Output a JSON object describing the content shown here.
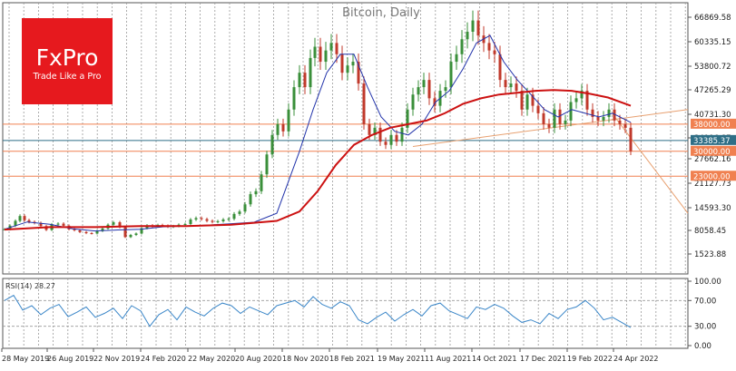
{
  "chart_data": {
    "type": "line",
    "title": "Bitcoin, Daily",
    "price_axis": {
      "scale": "nonlinear",
      "ticks": [
        "66869.58",
        "60335.15",
        "53800.72",
        "47265.29",
        "40731.30",
        "34196.87",
        "27662.16",
        "21127.73",
        "14593.30",
        "8058.45",
        "1523.88"
      ]
    },
    "price_markers": [
      {
        "label": "38000.00",
        "value": 38000,
        "color": "#f08050"
      },
      {
        "label": "33385.37",
        "value": 33385.37,
        "color": "#2e6e86"
      },
      {
        "label": "30000.00",
        "value": 30000,
        "color": "#f08050"
      },
      {
        "label": "23000.00",
        "value": 23000,
        "color": "#f08050"
      }
    ],
    "x_axis": {
      "ticks": [
        "28 May 2019",
        "26 Aug 2019",
        "22 Nov 2019",
        "24 Feb 2020",
        "22 May 2020",
        "20 Aug 2020",
        "18 Nov 2020",
        "18 Feb 2021",
        "19 May 2021",
        "11 Aug 2021",
        "14 Oct 2021",
        "17 Dec 2021",
        "19 Feb 2022",
        "24 Apr 2022"
      ]
    },
    "series": [
      {
        "role": "price",
        "type": "candlestick",
        "color_up": "#3a8f3a",
        "color_down": "#c0392b",
        "x": [
          0,
          6,
          12,
          17,
          22,
          27,
          33,
          40,
          46,
          52,
          59,
          65,
          71,
          77,
          83,
          90,
          96,
          102,
          108,
          114,
          120,
          127,
          133,
          139,
          145,
          151,
          157,
          163,
          169,
          174,
          180,
          186,
          192,
          199,
          205,
          211,
          217,
          223,
          229,
          235,
          241,
          247,
          253,
          259,
          265,
          271,
          277,
          283,
          289,
          295,
          301,
          307,
          313,
          319,
          325,
          331,
          337,
          342,
          348,
          354,
          360,
          366,
          372,
          378,
          384,
          390,
          396,
          402,
          408,
          414,
          420,
          426,
          432,
          438,
          444,
          450,
          456,
          462,
          468,
          474,
          480,
          486,
          492,
          498,
          504,
          510,
          516,
          522,
          528,
          534,
          540,
          546,
          552,
          558,
          564,
          570,
          576,
          582,
          588,
          594,
          600,
          606,
          612,
          618,
          624,
          630,
          636,
          642,
          648,
          654,
          660,
          666,
          672,
          678,
          684,
          690
        ],
        "close": [
          8400,
          9400,
          10800,
          12200,
          11000,
          10500,
          10200,
          9300,
          8200,
          9800,
          10000,
          9400,
          8400,
          8100,
          7600,
          7300,
          7200,
          7900,
          8600,
          9700,
          10400,
          9000,
          6200,
          6800,
          7200,
          8700,
          9500,
          9200,
          9600,
          9400,
          9100,
          9300,
          9700,
          9900,
          11200,
          11600,
          11300,
          10800,
          10500,
          10700,
          11200,
          11400,
          12800,
          13500,
          15500,
          18200,
          19000,
          23500,
          29000,
          35000,
          38000,
          36000,
          42000,
          48000,
          52000,
          48000,
          56000,
          59000,
          55000,
          58000,
          60000,
          57000,
          52000,
          54000,
          55000,
          49000,
          38000,
          35000,
          37000,
          33000,
          32000,
          35000,
          33000,
          37000,
          42000,
          46000,
          48000,
          50000,
          45000,
          43000,
          47000,
          48000,
          55000,
          57000,
          61000,
          63000,
          66000,
          62000,
          60000,
          58000,
          57000,
          50000,
          48000,
          49000,
          47000,
          42000,
          46000,
          43000,
          41000,
          38000,
          37000,
          42000,
          38000,
          39000,
          44000,
          45000,
          47000,
          42000,
          40000,
          39000,
          40000,
          42000,
          39000,
          38000,
          37000,
          30000
        ]
      },
      {
        "role": "ma-short",
        "color": "#2233aa",
        "x": [
          0,
          25,
          50,
          75,
          100,
          125,
          150,
          175,
          200,
          225,
          250,
          275,
          300,
          325,
          340,
          355,
          370,
          385,
          400,
          415,
          430,
          445,
          460,
          475,
          490,
          505,
          520,
          535,
          550,
          565,
          580,
          595,
          610,
          625,
          640,
          655,
          670,
          690
        ],
        "values": [
          8400,
          10500,
          9800,
          8500,
          7900,
          8200,
          8400,
          9100,
          9300,
          9600,
          10000,
          10400,
          13000,
          30000,
          42000,
          52000,
          57000,
          57000,
          48000,
          40000,
          36000,
          35000,
          38000,
          44000,
          47000,
          53000,
          60000,
          62000,
          55000,
          50000,
          46000,
          42000,
          40000,
          42000,
          41000,
          40000,
          41000,
          38500
        ]
      },
      {
        "role": "ma-long",
        "color": "#cc1111",
        "x": [
          0,
          50,
          100,
          150,
          200,
          250,
          300,
          325,
          345,
          365,
          385,
          405,
          425,
          445,
          465,
          485,
          505,
          525,
          545,
          565,
          585,
          605,
          625,
          645,
          665,
          690
        ],
        "values": [
          8300,
          9000,
          9000,
          9300,
          9300,
          9700,
          10800,
          13500,
          19000,
          26000,
          32000,
          35000,
          37000,
          38000,
          39000,
          41000,
          43500,
          45000,
          46000,
          46500,
          47000,
          47200,
          47000,
          46200,
          45200,
          43000
        ]
      }
    ],
    "trendlines": [
      {
        "from": [
          450,
          31500
        ],
        "to": [
          811,
          42000
        ],
        "color": "#e8a070"
      },
      {
        "from": [
          670,
          40800
        ],
        "to": [
          811,
          13000
        ],
        "color": "#e8a070"
      }
    ],
    "rsi": {
      "label": "RSI(14) 28.27",
      "levels": [
        "100.00",
        "70.00",
        "30.00",
        "0.00"
      ],
      "ylim": [
        0,
        100
      ],
      "x": [
        0,
        10,
        20,
        30,
        40,
        50,
        60,
        70,
        80,
        90,
        100,
        110,
        120,
        130,
        140,
        150,
        160,
        170,
        180,
        190,
        200,
        210,
        220,
        230,
        240,
        250,
        260,
        270,
        280,
        290,
        300,
        310,
        320,
        330,
        340,
        350,
        360,
        370,
        380,
        390,
        400,
        410,
        420,
        430,
        440,
        450,
        460,
        470,
        480,
        490,
        500,
        510,
        520,
        530,
        540,
        550,
        560,
        570,
        580,
        590,
        600,
        610,
        620,
        630,
        640,
        650,
        660,
        670,
        680,
        690
      ],
      "values": [
        70,
        78,
        55,
        62,
        48,
        58,
        64,
        45,
        52,
        60,
        44,
        50,
        58,
        42,
        62,
        54,
        30,
        48,
        56,
        40,
        60,
        52,
        46,
        58,
        66,
        62,
        50,
        60,
        54,
        48,
        62,
        66,
        70,
        60,
        76,
        64,
        58,
        68,
        62,
        40,
        34,
        44,
        52,
        38,
        48,
        56,
        46,
        62,
        66,
        54,
        48,
        42,
        60,
        56,
        64,
        58,
        46,
        36,
        40,
        34,
        50,
        42,
        56,
        60,
        70,
        58,
        40,
        44,
        36,
        28
      ]
    },
    "grid": true,
    "branding": {
      "logo_text": "FxPro",
      "tagline": "Trade Like a Pro",
      "color": "#e6191e"
    }
  }
}
